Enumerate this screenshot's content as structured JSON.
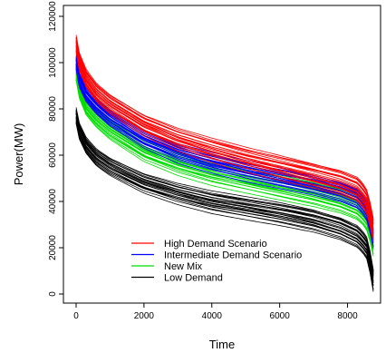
{
  "chart_data": {
    "type": "line",
    "title": "",
    "xlabel": "Time",
    "ylabel": "Power(MW)",
    "xlim": [
      0,
      8760
    ],
    "ylim": [
      0,
      120000
    ],
    "x_ticks": [
      0,
      2000,
      4000,
      6000,
      8000
    ],
    "y_ticks": [
      0,
      20000,
      40000,
      60000,
      80000,
      100000,
      120000
    ],
    "x_tick_labels": [
      "0",
      "2000",
      "4000",
      "6000",
      "8000"
    ],
    "y_tick_labels": [
      "0",
      "20000",
      "40000",
      "60000",
      "80000",
      "100000",
      "120000"
    ],
    "grid": false,
    "legend_position": "bottom-center",
    "curves_per_series": 22,
    "series": [
      {
        "name": "High Demand Scenario",
        "color": "#ff0000",
        "x": [
          0,
          100,
          300,
          600,
          1000,
          2000,
          3000,
          4000,
          5000,
          6000,
          7000,
          7800,
          8300,
          8600,
          8760
        ],
        "values": [
          108000,
          100000,
          93000,
          87000,
          82000,
          73000,
          67000,
          62500,
          58500,
          55000,
          51500,
          48500,
          45500,
          40000,
          30000
        ],
        "spread": 5000
      },
      {
        "name": "Intermediate Demand Scenario",
        "color": "#0000ff",
        "x": [
          0,
          100,
          300,
          600,
          1000,
          2000,
          3000,
          4000,
          5000,
          6000,
          7000,
          7800,
          8300,
          8600,
          8760
        ],
        "values": [
          100000,
          92000,
          86000,
          81000,
          76000,
          67000,
          61000,
          57000,
          53500,
          50500,
          47500,
          44500,
          41500,
          36000,
          26000
        ],
        "spread": 4000
      },
      {
        "name": "New Mix",
        "color": "#00dd00",
        "x": [
          0,
          100,
          300,
          600,
          1000,
          2000,
          3000,
          4000,
          5000,
          6000,
          7000,
          7800,
          8300,
          8600,
          8760
        ],
        "values": [
          96000,
          88000,
          81000,
          76000,
          71000,
          62000,
          56500,
          52500,
          49500,
          46500,
          43500,
          40500,
          37500,
          33000,
          24000
        ],
        "spread": 5000
      },
      {
        "name": "Low Demand",
        "color": "#000000",
        "x": [
          0,
          100,
          300,
          600,
          1000,
          2000,
          3000,
          4000,
          5000,
          6000,
          7000,
          7800,
          8300,
          8600,
          8760
        ],
        "values": [
          77000,
          70000,
          64000,
          59000,
          55000,
          48000,
          43500,
          40000,
          37500,
          35000,
          32000,
          28500,
          25000,
          20000,
          8000
        ],
        "spread": 4500
      }
    ]
  }
}
